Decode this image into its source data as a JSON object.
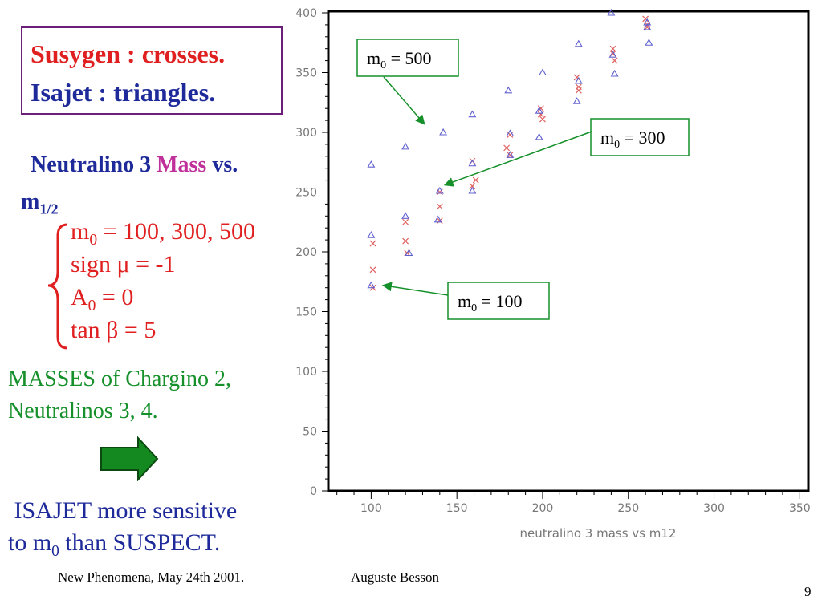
{
  "slide": {
    "legend_line1": "Susygen : crosses.",
    "legend_line2": "Isajet : triangles.",
    "subtitle_part1": "Neutralino 3 ",
    "subtitle_mass": "Mass",
    "subtitle_part2": " vs.",
    "m_half_main": "m",
    "m_half_sub": "1/2",
    "params": [
      {
        "main": "m",
        "sub": "0",
        "rest": " = 100, 300, 500"
      },
      {
        "main": "sign μ = -1",
        "sub": "",
        "rest": ""
      },
      {
        "main": "A",
        "sub": "0",
        "rest": " = 0"
      },
      {
        "main": "tan β = 5",
        "sub": "",
        "rest": ""
      }
    ],
    "masses_line1": "MASSES of  Chargino 2,",
    "masses_line2": "Neutralinos 3, 4.",
    "conclusion_line1": " ISAJET more sensitive",
    "conclusion_line2_pre": "to m",
    "conclusion_line2_sub": "0",
    "conclusion_line2_post": " than SUSPECT.",
    "footer_left": "New Phenomena, May 24th 2001.",
    "footer_mid": "Auguste Besson",
    "page_number": "9",
    "arrow_icon": "right-arrow-icon",
    "accent_colors": {
      "red": "#e02020",
      "blue": "#1e2a9a",
      "green": "#15902a",
      "magenta": "#c0309a",
      "purple_border": "#6b1f7a"
    }
  },
  "chart_data": {
    "type": "scatter",
    "title": "",
    "xlabel": "neutralino 3 mass vs m12",
    "ylabel": "",
    "xlim": [
      75,
      355
    ],
    "ylim": [
      0,
      400
    ],
    "x_ticks": [
      100,
      150,
      200,
      250,
      300,
      350
    ],
    "y_ticks": [
      0,
      50,
      100,
      150,
      200,
      250,
      300,
      350,
      400
    ],
    "grid": false,
    "series": [
      {
        "name": "Susygen",
        "marker": "cross",
        "color": "#e06060",
        "points": [
          [
            101,
            207
          ],
          [
            101,
            185
          ],
          [
            101,
            170
          ],
          [
            120,
            225
          ],
          [
            120,
            209
          ],
          [
            121,
            199
          ],
          [
            140,
            250
          ],
          [
            140,
            238
          ],
          [
            140,
            226
          ],
          [
            159,
            276
          ],
          [
            159,
            255
          ],
          [
            161,
            260
          ],
          [
            179,
            287
          ],
          [
            181,
            298
          ],
          [
            181,
            281
          ],
          [
            199,
            320
          ],
          [
            199,
            315
          ],
          [
            200,
            311
          ],
          [
            220,
            346
          ],
          [
            221,
            338
          ],
          [
            221,
            335
          ],
          [
            241,
            370
          ],
          [
            241,
            366
          ],
          [
            242,
            360
          ],
          [
            260,
            395
          ],
          [
            261,
            390
          ],
          [
            261,
            388
          ]
        ]
      },
      {
        "name": "Isajet",
        "marker": "triangle",
        "color": "#6060d0",
        "points": [
          [
            100,
            273
          ],
          [
            100,
            214
          ],
          [
            100,
            172
          ],
          [
            120,
            288
          ],
          [
            120,
            230
          ],
          [
            122,
            199
          ],
          [
            142,
            300
          ],
          [
            140,
            251
          ],
          [
            139,
            227
          ],
          [
            159,
            315
          ],
          [
            159,
            274
          ],
          [
            159,
            251
          ],
          [
            180,
            335
          ],
          [
            181,
            299
          ],
          [
            181,
            281
          ],
          [
            200,
            350
          ],
          [
            198,
            318
          ],
          [
            198,
            296
          ],
          [
            221,
            374
          ],
          [
            221,
            343
          ],
          [
            220,
            326
          ],
          [
            240,
            400
          ],
          [
            241,
            365
          ],
          [
            242,
            349
          ],
          [
            262,
            375
          ],
          [
            261,
            392
          ],
          [
            261,
            388
          ]
        ]
      }
    ],
    "annotations": [
      {
        "label_main": "m",
        "label_sub": "0",
        "label_rest": " = 500",
        "points_to": [
          131,
          307
        ]
      },
      {
        "label_main": "m",
        "label_sub": "0",
        "label_rest": " = 300",
        "points_to": [
          143,
          256
        ]
      },
      {
        "label_main": "m",
        "label_sub": "0",
        "label_rest": " = 100",
        "points_to": [
          107,
          172
        ]
      }
    ]
  }
}
